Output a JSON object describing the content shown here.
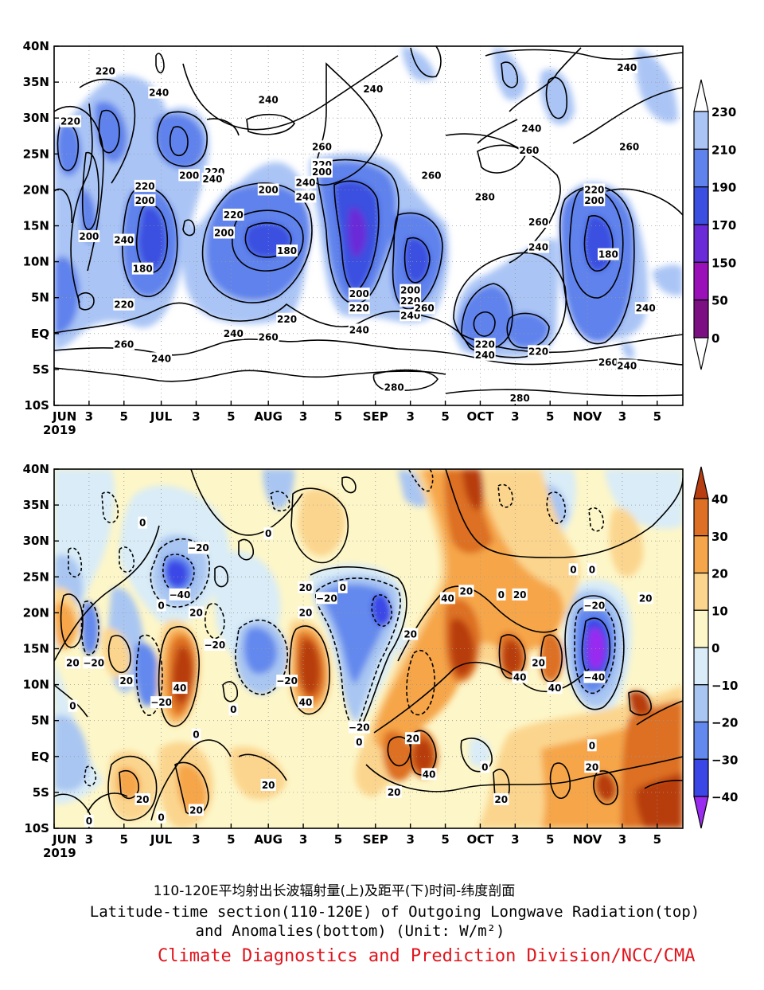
{
  "colors": {
    "olr_fills": [
      "#5b0b52",
      "#7c0f82",
      "#9a10b8",
      "#6a2ad8",
      "#3b4fe0",
      "#5f82ec",
      "#aac5f5"
    ],
    "anom_fills": [
      "#9a2cf0",
      "#3b46e6",
      "#6389ee",
      "#a9c6f2",
      "#d9ecf7",
      "#fdf6c8",
      "#fbd58e",
      "#f6a64a",
      "#dd7024",
      "#b83d10"
    ],
    "organization_text": "#e0141c"
  },
  "chart_data": [
    {
      "type": "heatmap",
      "panel": "top",
      "variable": "Outgoing Longwave Radiation",
      "y_ticks": [
        "40N",
        "35N",
        "30N",
        "25N",
        "20N",
        "15N",
        "10N",
        "5N",
        "EQ",
        "5S",
        "10S"
      ],
      "y_values": [
        40,
        35,
        30,
        25,
        20,
        15,
        10,
        5,
        0,
        -5,
        -10
      ],
      "ylim": [
        -10,
        40
      ],
      "x_ticks": [
        "JUN",
        "3",
        "5",
        "JUL",
        "3",
        "5",
        "AUG",
        "3",
        "5",
        "SEP",
        "3",
        "5",
        "OCT",
        "3",
        "5",
        "NOV",
        "3",
        "5"
      ],
      "x_days": [
        0,
        15,
        30,
        46,
        61,
        76,
        92,
        107,
        122,
        138,
        153,
        168,
        183,
        198,
        213,
        229,
        244,
        259
      ],
      "x_year": "2019",
      "xlim": [
        0,
        270
      ],
      "colorbar": {
        "levels": [
          "230",
          "210",
          "190",
          "170",
          "150",
          "50",
          "0"
        ],
        "level_values": [
          230,
          210,
          190,
          170,
          150,
          50,
          0
        ],
        "extend": "both"
      },
      "contour_labels": [
        {
          "text": "220",
          "x": 22,
          "y": 36.5
        },
        {
          "text": "220",
          "x": 7,
          "y": 29.5
        },
        {
          "text": "240",
          "x": 45,
          "y": 33.5
        },
        {
          "text": "240",
          "x": 92,
          "y": 32.5
        },
        {
          "text": "240",
          "x": 137,
          "y": 34
        },
        {
          "text": "240",
          "x": 205,
          "y": 28.5
        },
        {
          "text": "240",
          "x": 246,
          "y": 37
        },
        {
          "text": "260",
          "x": 204,
          "y": 25.5
        },
        {
          "text": "260",
          "x": 247,
          "y": 26
        },
        {
          "text": "260",
          "x": 115,
          "y": 26
        },
        {
          "text": "220",
          "x": 115,
          "y": 23.5
        },
        {
          "text": "200",
          "x": 115,
          "y": 22.5
        },
        {
          "text": "240",
          "x": 108,
          "y": 21
        },
        {
          "text": "240",
          "x": 108,
          "y": 19
        },
        {
          "text": "260",
          "x": 162,
          "y": 22
        },
        {
          "text": "280",
          "x": 185,
          "y": 19
        },
        {
          "text": "220",
          "x": 69,
          "y": 22.5
        },
        {
          "text": "240",
          "x": 68,
          "y": 21.5
        },
        {
          "text": "200",
          "x": 58,
          "y": 22
        },
        {
          "text": "220",
          "x": 39,
          "y": 20.5
        },
        {
          "text": "200",
          "x": 39,
          "y": 18.5
        },
        {
          "text": "220",
          "x": 77,
          "y": 16.5
        },
        {
          "text": "200",
          "x": 73,
          "y": 14
        },
        {
          "text": "200",
          "x": 92,
          "y": 20
        },
        {
          "text": "200",
          "x": 15,
          "y": 13.5
        },
        {
          "text": "240",
          "x": 30,
          "y": 13
        },
        {
          "text": "180",
          "x": 38,
          "y": 9
        },
        {
          "text": "180",
          "x": 100,
          "y": 11.5
        },
        {
          "text": "260",
          "x": 208,
          "y": 15.5
        },
        {
          "text": "240",
          "x": 208,
          "y": 12
        },
        {
          "text": "220",
          "x": 232,
          "y": 20
        },
        {
          "text": "200",
          "x": 232,
          "y": 18.5
        },
        {
          "text": "180",
          "x": 238,
          "y": 11
        },
        {
          "text": "200",
          "x": 131,
          "y": 5.5
        },
        {
          "text": "220",
          "x": 131,
          "y": 3.5
        },
        {
          "text": "200",
          "x": 153,
          "y": 6
        },
        {
          "text": "220",
          "x": 153,
          "y": 4.5
        },
        {
          "text": "240",
          "x": 153,
          "y": 2.5
        },
        {
          "text": "260",
          "x": 159,
          "y": 3.5
        },
        {
          "text": "220",
          "x": 30,
          "y": 4
        },
        {
          "text": "220",
          "x": 100,
          "y": 2
        },
        {
          "text": "240",
          "x": 77,
          "y": 0
        },
        {
          "text": "240",
          "x": 131,
          "y": 0.5
        },
        {
          "text": "260",
          "x": 30,
          "y": -1.5
        },
        {
          "text": "260",
          "x": 92,
          "y": -0.5
        },
        {
          "text": "240",
          "x": 46,
          "y": -3.5
        },
        {
          "text": "220",
          "x": 185,
          "y": -1.5
        },
        {
          "text": "240",
          "x": 185,
          "y": -3
        },
        {
          "text": "220",
          "x": 208,
          "y": -2.5
        },
        {
          "text": "260",
          "x": 238,
          "y": -4
        },
        {
          "text": "240",
          "x": 246,
          "y": -4.5
        },
        {
          "text": "240",
          "x": 254,
          "y": 3.5
        },
        {
          "text": "280",
          "x": 146,
          "y": -7.5
        },
        {
          "text": "280",
          "x": 200,
          "y": -9
        }
      ]
    },
    {
      "type": "heatmap",
      "panel": "bottom",
      "variable": "Outgoing Longwave Radiation Anomalies",
      "y_ticks": [
        "40N",
        "35N",
        "30N",
        "25N",
        "20N",
        "15N",
        "10N",
        "5N",
        "EQ",
        "5S",
        "10S"
      ],
      "y_values": [
        40,
        35,
        30,
        25,
        20,
        15,
        10,
        5,
        0,
        -5,
        -10
      ],
      "ylim": [
        -10,
        40
      ],
      "x_ticks": [
        "JUN",
        "3",
        "5",
        "JUL",
        "3",
        "5",
        "AUG",
        "3",
        "5",
        "SEP",
        "3",
        "5",
        "OCT",
        "3",
        "5",
        "NOV",
        "3",
        "5"
      ],
      "x_days": [
        0,
        15,
        30,
        46,
        61,
        76,
        92,
        107,
        122,
        138,
        153,
        168,
        183,
        198,
        213,
        229,
        244,
        259
      ],
      "x_year": "2019",
      "xlim": [
        0,
        270
      ],
      "colorbar": {
        "levels": [
          "40",
          "30",
          "20",
          "10",
          "0",
          "−10",
          "−20",
          "−30",
          "−40"
        ],
        "level_values": [
          40,
          30,
          20,
          10,
          0,
          -10,
          -20,
          -30,
          -40
        ],
        "extend": "both"
      },
      "contour_labels": [
        {
          "text": "0",
          "x": 38,
          "y": 32.5
        },
        {
          "text": "−20",
          "x": 62,
          "y": 29
        },
        {
          "text": "0",
          "x": 92,
          "y": 31
        },
        {
          "text": "20",
          "x": 108,
          "y": 23.5
        },
        {
          "text": "−20",
          "x": 117,
          "y": 22
        },
        {
          "text": "0",
          "x": 124,
          "y": 23.5
        },
        {
          "text": "−40",
          "x": 54,
          "y": 22.5
        },
        {
          "text": "0",
          "x": 46,
          "y": 21
        },
        {
          "text": "20",
          "x": 61,
          "y": 20
        },
        {
          "text": "−20",
          "x": 69,
          "y": 15.5
        },
        {
          "text": "20",
          "x": 108,
          "y": 20
        },
        {
          "text": "20",
          "x": 153,
          "y": 17
        },
        {
          "text": "40",
          "x": 169,
          "y": 22
        },
        {
          "text": "20",
          "x": 177,
          "y": 23
        },
        {
          "text": "0",
          "x": 192,
          "y": 22.5
        },
        {
          "text": "20",
          "x": 200,
          "y": 22.5
        },
        {
          "text": "0",
          "x": 223,
          "y": 26
        },
        {
          "text": "0",
          "x": 231,
          "y": 26
        },
        {
          "text": "−20",
          "x": 232,
          "y": 21
        },
        {
          "text": "20",
          "x": 254,
          "y": 22
        },
        {
          "text": "−40",
          "x": 232,
          "y": 11
        },
        {
          "text": "20",
          "x": 8,
          "y": 13
        },
        {
          "text": "−20",
          "x": 17,
          "y": 13
        },
        {
          "text": "20",
          "x": 31,
          "y": 10.5
        },
        {
          "text": "20",
          "x": 208,
          "y": 13
        },
        {
          "text": "40",
          "x": 200,
          "y": 11
        },
        {
          "text": "40",
          "x": 215,
          "y": 9.5
        },
        {
          "text": "−20",
          "x": 46,
          "y": 7.5
        },
        {
          "text": "40",
          "x": 54,
          "y": 9.5
        },
        {
          "text": "−20",
          "x": 100,
          "y": 10.5
        },
        {
          "text": "40",
          "x": 108,
          "y": 7.5
        },
        {
          "text": "0",
          "x": 77,
          "y": 6.5
        },
        {
          "text": "0",
          "x": 8,
          "y": 7
        },
        {
          "text": "0",
          "x": 61,
          "y": 3
        },
        {
          "text": "−20",
          "x": 131,
          "y": 4
        },
        {
          "text": "0",
          "x": 131,
          "y": 2
        },
        {
          "text": "20",
          "x": 154,
          "y": 2.5
        },
        {
          "text": "40",
          "x": 161,
          "y": -2.5
        },
        {
          "text": "0",
          "x": 185,
          "y": -1.5
        },
        {
          "text": "20",
          "x": 231,
          "y": -1.5
        },
        {
          "text": "0",
          "x": 231,
          "y": 1.5
        },
        {
          "text": "20",
          "x": 92,
          "y": -4
        },
        {
          "text": "20",
          "x": 38,
          "y": -6
        },
        {
          "text": "20",
          "x": 61,
          "y": -7.5
        },
        {
          "text": "20",
          "x": 146,
          "y": -5
        },
        {
          "text": "20",
          "x": 192,
          "y": -6
        },
        {
          "text": "0",
          "x": 15,
          "y": -9
        },
        {
          "text": "0",
          "x": 46,
          "y": -8.5
        }
      ]
    }
  ],
  "caption": {
    "zh": "110-120E平均射出长波辐射量(上)及距平(下)时间-纬度剖面",
    "en_line1": "Latitude-time section(110-120E) of Outgoing Longwave Radiation(top)",
    "en_line2": "and Anomalies(bottom) (Unit: W/m²)",
    "organization": "Climate Diagnostics and Prediction Division/NCC/CMA"
  }
}
